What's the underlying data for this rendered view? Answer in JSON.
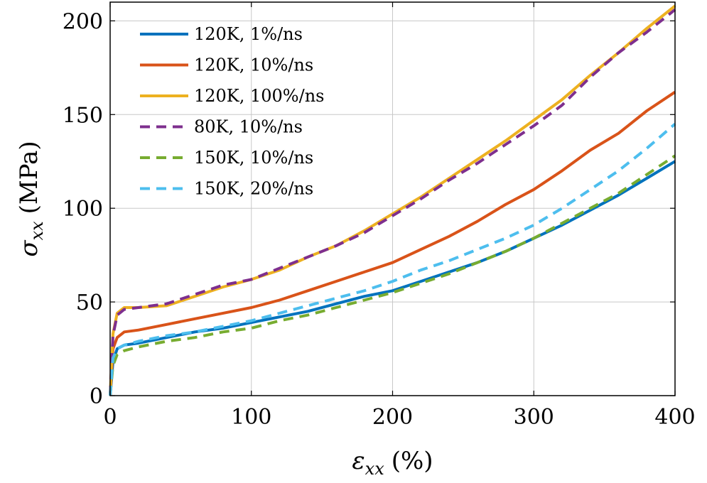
{
  "chart_data": {
    "type": "line",
    "xlabel": "εxx (%)",
    "ylabel": "σxx (MPa)",
    "xlabel_parts": {
      "symbol": "ε",
      "sub": "xx",
      "unit": "(%)"
    },
    "ylabel_parts": {
      "symbol": "σ",
      "sub": "xx",
      "unit": "(MPa)"
    },
    "xlim": [
      0,
      400
    ],
    "ylim": [
      0,
      210
    ],
    "xticks": [
      0,
      100,
      200,
      300,
      400
    ],
    "yticks": [
      0,
      50,
      100,
      150,
      200
    ],
    "grid": true,
    "legend_position": "top-left",
    "series": [
      {
        "name": "120K, 1%/ns",
        "color": "#0072BD",
        "dash": "solid",
        "x": [
          0,
          2,
          5,
          10,
          20,
          40,
          60,
          80,
          100,
          120,
          140,
          160,
          180,
          200,
          220,
          240,
          260,
          280,
          300,
          320,
          340,
          360,
          380,
          400
        ],
        "y": [
          0,
          18,
          25,
          27,
          28,
          31,
          34,
          36,
          39,
          42,
          45,
          49,
          53,
          56,
          61,
          66,
          71,
          77,
          84,
          91,
          99,
          107,
          116,
          125
        ]
      },
      {
        "name": "120K, 10%/ns",
        "color": "#D95319",
        "dash": "solid",
        "x": [
          0,
          2,
          5,
          10,
          20,
          40,
          60,
          80,
          100,
          120,
          140,
          160,
          180,
          200,
          220,
          240,
          260,
          280,
          300,
          320,
          340,
          360,
          380,
          400
        ],
        "y": [
          0,
          25,
          31,
          34,
          35,
          38,
          41,
          44,
          47,
          51,
          56,
          61,
          66,
          71,
          78,
          85,
          93,
          102,
          110,
          120,
          131,
          140,
          152,
          162
        ]
      },
      {
        "name": "120K, 100%/ns",
        "color": "#EDB120",
        "dash": "solid",
        "x": [
          0,
          2,
          5,
          10,
          20,
          40,
          60,
          80,
          100,
          120,
          140,
          160,
          180,
          200,
          220,
          240,
          260,
          280,
          300,
          320,
          340,
          360,
          380,
          400
        ],
        "y": [
          0,
          33,
          44,
          47,
          47,
          48,
          53,
          58,
          62,
          67,
          74,
          80,
          88,
          97,
          106,
          116,
          126,
          136,
          147,
          158,
          171,
          183,
          196,
          208
        ]
      },
      {
        "name": "80K, 10%/ns",
        "color": "#7E2F8E",
        "dash": "dashed",
        "x": [
          0,
          2,
          5,
          10,
          20,
          40,
          60,
          80,
          100,
          120,
          140,
          160,
          180,
          200,
          220,
          240,
          260,
          280,
          300,
          320,
          340,
          360,
          380,
          400
        ],
        "y": [
          0,
          32,
          43,
          46,
          47,
          49,
          54,
          59,
          62,
          68,
          74,
          80,
          87,
          96,
          105,
          115,
          124,
          134,
          144,
          155,
          170,
          183,
          194,
          206
        ]
      },
      {
        "name": "150K, 10%/ns",
        "color": "#77AC30",
        "dash": "dashed",
        "x": [
          0,
          2,
          5,
          10,
          20,
          40,
          60,
          80,
          100,
          120,
          140,
          160,
          180,
          200,
          220,
          240,
          260,
          280,
          300,
          320,
          340,
          360,
          380,
          400
        ],
        "y": [
          0,
          16,
          22,
          24,
          26,
          29,
          31,
          34,
          36,
          40,
          43,
          47,
          51,
          55,
          60,
          65,
          71,
          77,
          84,
          92,
          100,
          108,
          118,
          128
        ]
      },
      {
        "name": "150K, 20%/ns",
        "color": "#4DBEEE",
        "dash": "dashed",
        "x": [
          0,
          2,
          5,
          10,
          20,
          40,
          60,
          80,
          100,
          120,
          140,
          160,
          180,
          200,
          220,
          240,
          260,
          280,
          300,
          320,
          340,
          360,
          380,
          400
        ],
        "y": [
          0,
          20,
          25,
          27,
          29,
          32,
          34,
          37,
          40,
          44,
          48,
          52,
          56,
          61,
          67,
          72,
          78,
          84,
          91,
          100,
          110,
          120,
          132,
          145
        ]
      }
    ]
  }
}
